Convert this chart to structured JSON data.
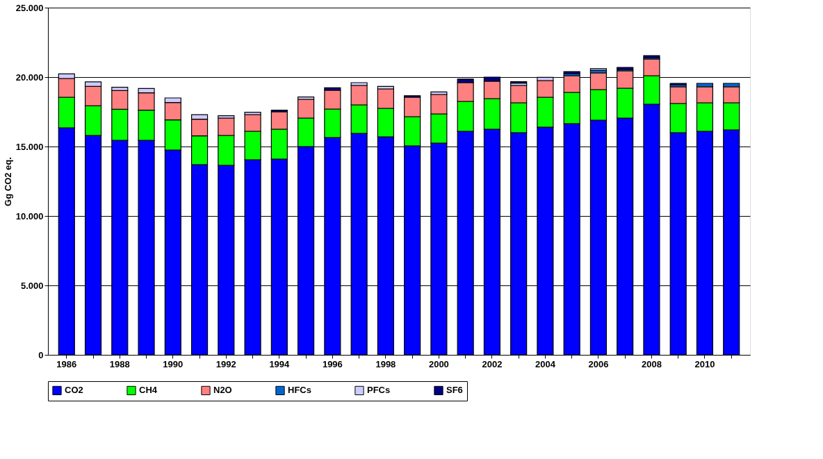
{
  "chart_data": {
    "type": "bar",
    "stacked": true,
    "ylabel": "Gg CO2 eq.",
    "legend": "bottom",
    "grid": "y",
    "categories": [
      "1986",
      null,
      "1988",
      null,
      "1990",
      null,
      "1992",
      null,
      "1994",
      null,
      "1996",
      null,
      "1998",
      null,
      "2000",
      null,
      "2002",
      null,
      "2004",
      null,
      "2006",
      null,
      "2008",
      null,
      "2010",
      null
    ],
    "ylim": [
      0,
      25000
    ],
    "yticks": [
      0,
      {
        "value": 5000,
        "label": "5.000"
      },
      {
        "value": 10000,
        "label": "10.000"
      },
      {
        "value": 15000,
        "label": "15.000"
      },
      {
        "value": 20000,
        "label": "20.000"
      },
      {
        "value": 25000,
        "label": "25.000"
      }
    ],
    "series": [
      {
        "name": "CO2",
        "color": "#0000ff",
        "values": [
          16350,
          15800,
          15450,
          15450,
          14750,
          13700,
          13650,
          14050,
          14100,
          15000,
          15650,
          15950,
          15700,
          15050,
          15250,
          16100,
          16250,
          16000,
          16400,
          16650,
          16900,
          17050,
          18050,
          16000,
          16100,
          16200
        ]
      },
      {
        "name": "CH4",
        "color": "#00ff00",
        "values": [
          2200,
          2130,
          2230,
          2170,
          2170,
          2070,
          2150,
          2050,
          2150,
          2050,
          2050,
          2050,
          2050,
          2100,
          2100,
          2150,
          2200,
          2150,
          2150,
          2250,
          2200,
          2150,
          2050,
          2100,
          2050,
          1950
        ]
      },
      {
        "name": "N2O",
        "color": "#ff8080",
        "values": [
          1350,
          1400,
          1350,
          1250,
          1250,
          1200,
          1250,
          1200,
          1250,
          1350,
          1350,
          1400,
          1400,
          1400,
          1400,
          1350,
          1250,
          1250,
          1200,
          1200,
          1200,
          1250,
          1200,
          1200,
          1150,
          1150
        ]
      },
      {
        "name": "HFCs",
        "color": "#0066cc",
        "values": [
          null,
          null,
          null,
          null,
          null,
          null,
          null,
          null,
          null,
          null,
          null,
          null,
          null,
          null,
          null,
          null,
          null,
          null,
          null,
          150,
          180,
          100,
          100,
          150,
          250,
          250
        ]
      },
      {
        "name": "PFCs",
        "color": "#ccccff",
        "values": [
          330,
          330,
          240,
          310,
          330,
          320,
          170,
          170,
          null,
          170,
          null,
          200,
          180,
          null,
          180,
          null,
          null,
          170,
          230,
          null,
          130,
          null,
          null,
          null,
          null,
          null
        ]
      },
      {
        "name": "SF6",
        "color": "#000080",
        "values": [
          null,
          null,
          null,
          null,
          null,
          null,
          null,
          null,
          120,
          null,
          180,
          null,
          null,
          110,
          null,
          260,
          300,
          100,
          null,
          150,
          null,
          150,
          150,
          100,
          null,
          null
        ]
      }
    ]
  }
}
